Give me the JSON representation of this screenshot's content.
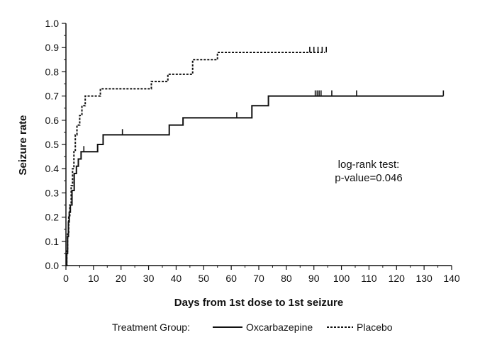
{
  "chart_data": {
    "type": "line",
    "title": "",
    "xlabel": "Days from 1st dose to 1st seizure",
    "ylabel": "Seizure rate",
    "xlim": [
      0,
      140
    ],
    "ylim": [
      0,
      1.0
    ],
    "x_ticks": [
      0,
      10,
      20,
      30,
      40,
      50,
      60,
      70,
      80,
      90,
      100,
      110,
      120,
      130,
      140
    ],
    "y_ticks": [
      "0.0",
      "0.1",
      "0.2",
      "0.3",
      "0.4",
      "0.5",
      "0.6",
      "0.7",
      "0.8",
      "0.9",
      "1.0"
    ],
    "grid": false,
    "legend": {
      "title": "Treatment Group:",
      "placement": "bottom",
      "entries": [
        "Oxcarbazepine",
        "Placebo"
      ]
    },
    "annotation": {
      "line1": "log-rank test:",
      "line2": "p-value=0.046"
    },
    "series": [
      {
        "name": "Oxcarbazepine",
        "style": "solid",
        "color": "#111111",
        "steps": [
          [
            0,
            0.0
          ],
          [
            0.3,
            0.05
          ],
          [
            0.6,
            0.12
          ],
          [
            0.9,
            0.18
          ],
          [
            1.2,
            0.22
          ],
          [
            1.6,
            0.25
          ],
          [
            2.2,
            0.31
          ],
          [
            3.0,
            0.38
          ],
          [
            3.8,
            0.41
          ],
          [
            4.5,
            0.44
          ],
          [
            5.5,
            0.47
          ],
          [
            9.5,
            0.47
          ],
          [
            11.5,
            0.5
          ],
          [
            13.5,
            0.54
          ],
          [
            37.5,
            0.58
          ],
          [
            42.5,
            0.61
          ],
          [
            61.5,
            0.61
          ],
          [
            67.5,
            0.66
          ],
          [
            73.5,
            0.7
          ],
          [
            137,
            0.7
          ]
        ],
        "censored": [
          [
            6.5,
            0.47
          ],
          [
            20.5,
            0.54
          ],
          [
            62,
            0.61
          ],
          [
            90.5,
            0.7
          ],
          [
            91.2,
            0.7
          ],
          [
            91.9,
            0.7
          ],
          [
            92.6,
            0.7
          ],
          [
            96.5,
            0.7
          ],
          [
            105.5,
            0.7
          ],
          [
            137,
            0.7
          ]
        ]
      },
      {
        "name": "Placebo",
        "style": "dashed",
        "color": "#111111",
        "steps": [
          [
            0,
            0.0
          ],
          [
            0.3,
            0.06
          ],
          [
            0.6,
            0.13
          ],
          [
            1.0,
            0.2
          ],
          [
            1.4,
            0.25
          ],
          [
            1.9,
            0.33
          ],
          [
            2.4,
            0.4
          ],
          [
            2.9,
            0.47
          ],
          [
            3.4,
            0.54
          ],
          [
            4.0,
            0.58
          ],
          [
            5.0,
            0.62
          ],
          [
            5.8,
            0.66
          ],
          [
            7.0,
            0.7
          ],
          [
            12.5,
            0.73
          ],
          [
            31.0,
            0.76
          ],
          [
            37.0,
            0.79
          ],
          [
            46.0,
            0.85
          ],
          [
            55.0,
            0.88
          ],
          [
            94.0,
            0.88
          ]
        ],
        "censored": [
          [
            88.5,
            0.88
          ],
          [
            90.0,
            0.88
          ],
          [
            91.5,
            0.88
          ],
          [
            93.0,
            0.88
          ],
          [
            94.5,
            0.88
          ]
        ]
      }
    ]
  }
}
